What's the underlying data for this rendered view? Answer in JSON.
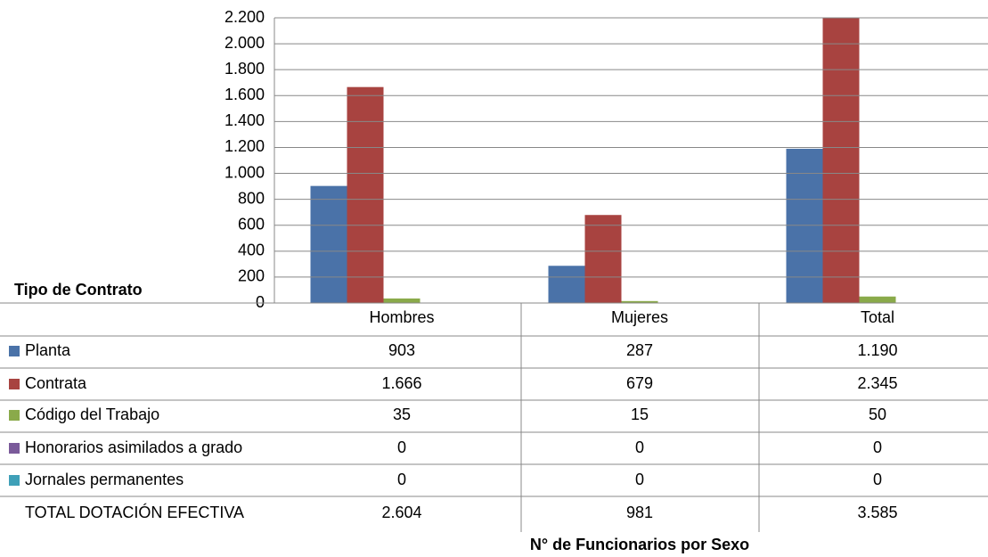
{
  "chart_data": {
    "type": "bar",
    "legend_title": "Tipo de Contrato",
    "x_label": "N° de Funcionarios por Sexo",
    "categories": [
      "Hombres",
      "Mujeres",
      "Total"
    ],
    "series": [
      {
        "name": "Planta",
        "color": "#4a72a8",
        "values": [
          903,
          287,
          1190
        ],
        "value_labels": [
          "903",
          "287",
          "1.190"
        ]
      },
      {
        "name": "Contrata",
        "color": "#a84340",
        "values": [
          1666,
          679,
          2345
        ],
        "value_labels": [
          "1.666",
          "679",
          "2.345"
        ]
      },
      {
        "name": "Código del Trabajo",
        "color": "#8aaa4a",
        "values": [
          35,
          15,
          50
        ]
      },
      {
        "name": "Honorarios asimilados a grado",
        "color": "#7a5a9a",
        "values": [
          0,
          0,
          0
        ]
      },
      {
        "name": "Jornales permanentes",
        "color": "#3fa0b8",
        "values": [
          0,
          0,
          0
        ]
      }
    ],
    "total_row": {
      "name": "TOTAL DOTACIÓN EFECTIVA",
      "values": [
        2604,
        981,
        3585
      ],
      "value_labels": [
        "2.604",
        "981",
        "3.585"
      ]
    },
    "ylim": [
      0,
      2200
    ],
    "yticks": [
      0,
      200,
      400,
      600,
      800,
      {
        "value": 1000,
        "label": "1.000"
      },
      {
        "value": 1200,
        "label": "1.200"
      },
      {
        "value": 1400,
        "label": "1.400"
      },
      {
        "value": 1600,
        "label": "1.600"
      },
      {
        "value": 1800,
        "label": "1.800"
      },
      {
        "value": 2000,
        "label": "2.000"
      },
      {
        "value": 2200,
        "label": "2.200"
      }
    ],
    "grid": true
  }
}
